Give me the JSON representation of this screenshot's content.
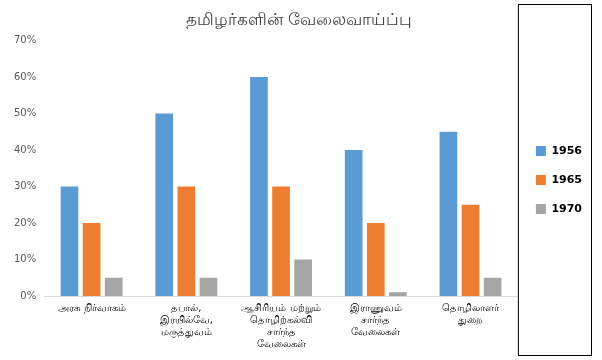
{
  "chart_data": {
    "type": "bar",
    "title": "தமிழர்களின் வேலைவாய்ப்பு",
    "categories": [
      "அரசு நிர்வாகம்",
      "தபால்,\nஇரயில்வே,\nமருத்துவம்",
      "ஆசிரியம் மற்றும்\nதொழிற்கல்வி\nசார்ந்த\nவேலைகள்",
      "இராணுவம்\nசார்ந்த\nவேலைகள்",
      "தொழிலாளர்\nதுறை"
    ],
    "series": [
      {
        "name": "1956",
        "color": "#5b9bd5",
        "values": [
          30,
          50,
          60,
          40,
          45
        ]
      },
      {
        "name": "1965",
        "color": "#ed7d31",
        "values": [
          20,
          30,
          30,
          20,
          25
        ]
      },
      {
        "name": "1970",
        "color": "#a5a5a5",
        "values": [
          5,
          5,
          10,
          1,
          5
        ]
      }
    ],
    "ylim": [
      0,
      70
    ],
    "yticks": [
      {
        "value": 0,
        "label": "0%"
      },
      {
        "value": 10,
        "label": "10%"
      },
      {
        "value": 20,
        "label": "20%"
      },
      {
        "value": 30,
        "label": "30%"
      },
      {
        "value": 40,
        "label": "40%"
      },
      {
        "value": 50,
        "label": "50%"
      },
      {
        "value": 60,
        "label": "60%"
      },
      {
        "value": 70,
        "label": "70%"
      }
    ],
    "grid": false,
    "legend": "right"
  }
}
